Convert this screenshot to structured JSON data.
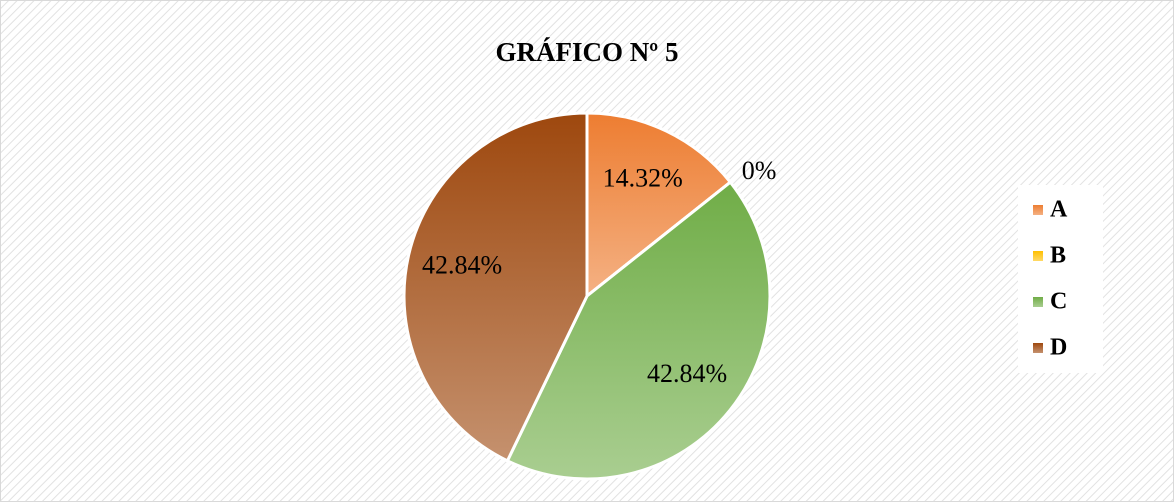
{
  "chart_data": {
    "type": "pie",
    "title": "GRÁFICO Nº 5",
    "categories": [
      "A",
      "B",
      "C",
      "D"
    ],
    "values": [
      14.32,
      0,
      42.84,
      42.84
    ],
    "value_labels": [
      "14.32%",
      "0%",
      "42.84%",
      "42.84%"
    ],
    "colors": [
      "#ed7d31",
      "#ffc000",
      "#70ad47",
      "#9e480e"
    ],
    "legend": "right"
  }
}
